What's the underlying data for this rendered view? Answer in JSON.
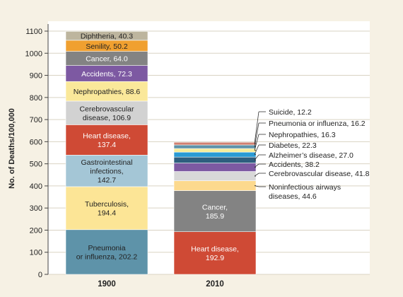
{
  "chart_data": {
    "type": "bar",
    "stacked": true,
    "ylabel": "No. of Deaths/100,000",
    "ylim": [
      0,
      1100
    ],
    "yticks": [
      0,
      100,
      200,
      300,
      400,
      500,
      600,
      700,
      800,
      900,
      1000,
      1100
    ],
    "grid": true,
    "categories": [
      "1900",
      "2010"
    ],
    "bars": [
      {
        "category": "1900",
        "segments": [
          {
            "label": "Pneumonia\nor influenza, 202.2",
            "value": 202.2,
            "color": "#5e93a9",
            "text_color": "#222222"
          },
          {
            "label": "Tuberculosis,\n194.4",
            "value": 194.4,
            "color": "#fce596",
            "text_color": "#222222"
          },
          {
            "label": "Gastrointestinal\ninfections,\n142.7",
            "value": 142.7,
            "color": "#a4c6d6",
            "text_color": "#222222"
          },
          {
            "label": "Heart disease,\n137.4",
            "value": 137.4,
            "color": "#cf4a35",
            "text_color": "#ffffff"
          },
          {
            "label": "Cerebrovascular\ndisease, 106.9",
            "value": 106.9,
            "color": "#d2d2d2",
            "text_color": "#222222"
          },
          {
            "label": "Nephropathies, 88.6",
            "value": 88.6,
            "color": "#fae89a",
            "text_color": "#222222"
          },
          {
            "label": "Accidents, 72.3",
            "value": 72.3,
            "color": "#7d59a2",
            "text_color": "#ffffff"
          },
          {
            "label": "Cancer, 64.0",
            "value": 64.0,
            "color": "#838383",
            "text_color": "#ffffff"
          },
          {
            "label": "Senility, 50.2",
            "value": 50.2,
            "color": "#f0a030",
            "text_color": "#222222"
          },
          {
            "label": "Diphtheria, 40.3",
            "value": 40.3,
            "color": "#bdb59e",
            "text_color": "#222222"
          }
        ]
      },
      {
        "category": "2010",
        "segments": [
          {
            "label": "Heart disease,\n192.9",
            "value": 192.9,
            "color": "#cf4a35",
            "text_color": "#ffffff"
          },
          {
            "label": "Cancer,\n185.9",
            "value": 185.9,
            "color": "#838383",
            "text_color": "#ffffff"
          },
          {
            "label": "Noninfectious airways\ndiseases, 44.6",
            "value": 44.6,
            "color": "#fcd98e",
            "callout": true
          },
          {
            "label": "Cerebrovascular disease, 41.8",
            "value": 41.8,
            "color": "#d8d8d8",
            "callout": true
          },
          {
            "label": "Accidents, 38.2",
            "value": 38.2,
            "color": "#7d59a2",
            "callout": true
          },
          {
            "label": "Alzheimer’s disease, 27.0",
            "value": 27.0,
            "color": "#2e5e7e",
            "callout": true
          },
          {
            "label": "Diabetes, 22.3",
            "value": 22.3,
            "color": "#2a9ad4",
            "callout": true
          },
          {
            "label": "Nephropathies, 16.3",
            "value": 16.3,
            "color": "#f8ec9a",
            "callout": true
          },
          {
            "label": "Pneumonia or influenza, 16.2",
            "value": 16.2,
            "color": "#5e93a9",
            "callout": true
          },
          {
            "label": "Suicide, 12.2",
            "value": 12.2,
            "color": "#d08070",
            "callout": true
          }
        ]
      }
    ]
  }
}
